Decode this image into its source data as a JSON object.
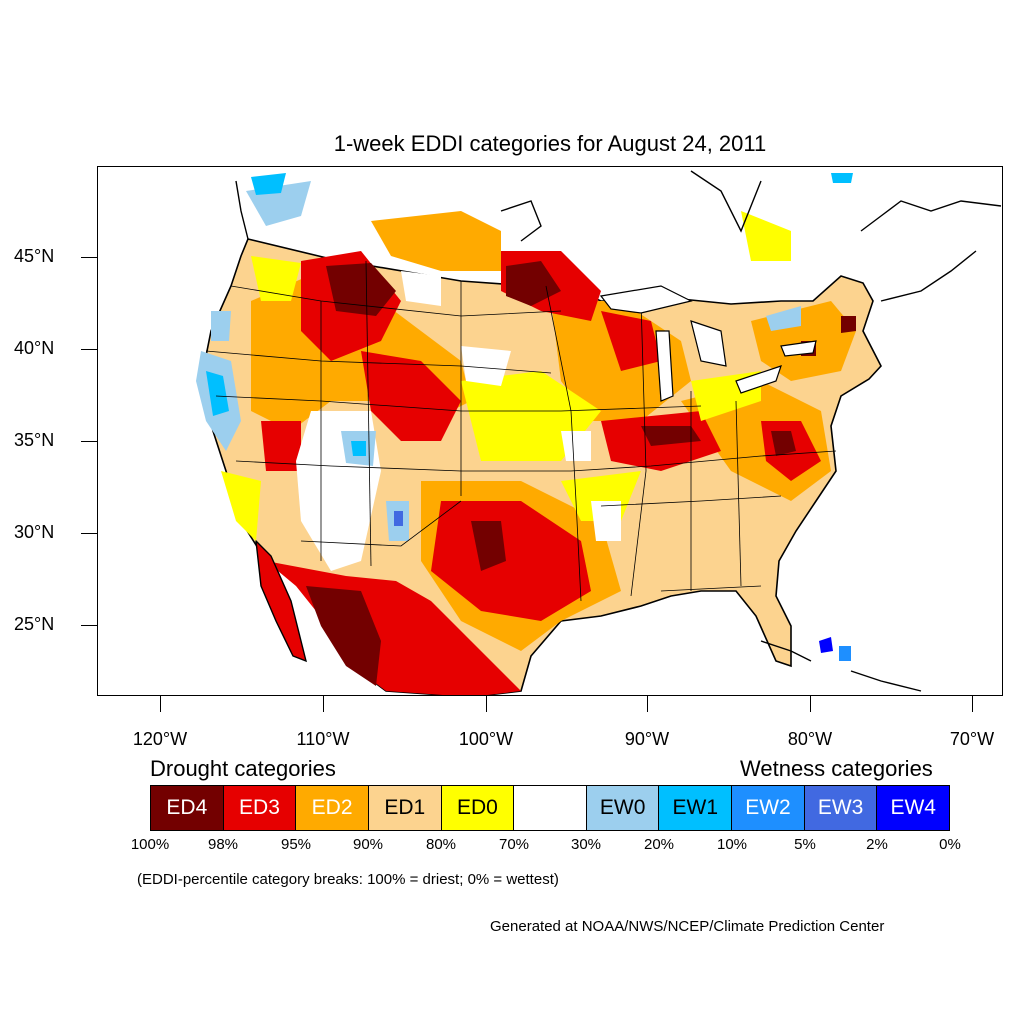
{
  "title": "1-week EDDI categories for August 24, 2011",
  "lat_labels": [
    "45°N",
    "40°N",
    "35°N",
    "30°N",
    "25°N"
  ],
  "lon_labels": [
    "120°W",
    "110°W",
    "100°W",
    "90°W",
    "80°W",
    "70°W"
  ],
  "drought_heading": "Drought categories",
  "wetness_heading": "Wetness categories",
  "legend": [
    {
      "label": "ED4",
      "color": "#730000",
      "text_color": "#ffffff"
    },
    {
      "label": "ED3",
      "color": "#e60000",
      "text_color": "#ffffff"
    },
    {
      "label": "ED2",
      "color": "#ffaa00",
      "text_color": "#ffffff"
    },
    {
      "label": "ED1",
      "color": "#fcd38f",
      "text_color": "#000000"
    },
    {
      "label": "ED0",
      "color": "#ffff00",
      "text_color": "#000000"
    },
    {
      "label": "",
      "color": "#ffffff",
      "text_color": "#000000"
    },
    {
      "label": "EW0",
      "color": "#9ccfee",
      "text_color": "#000000"
    },
    {
      "label": "EW1",
      "color": "#00bfff",
      "text_color": "#000000"
    },
    {
      "label": "EW2",
      "color": "#1e8fff",
      "text_color": "#ffffff"
    },
    {
      "label": "EW3",
      "color": "#4169e1",
      "text_color": "#ffffff"
    },
    {
      "label": "EW4",
      "color": "#0000ff",
      "text_color": "#ffffff"
    }
  ],
  "percentiles": [
    "100%",
    "98%",
    "95%",
    "90%",
    "80%",
    "70%",
    "30%",
    "20%",
    "10%",
    "5%",
    "2%",
    "0%"
  ],
  "note": "(EDDI-percentile category breaks: 100% = driest; 0% = wettest)",
  "credit": "Generated at NOAA/NWS/NCEP/Climate Prediction Center"
}
